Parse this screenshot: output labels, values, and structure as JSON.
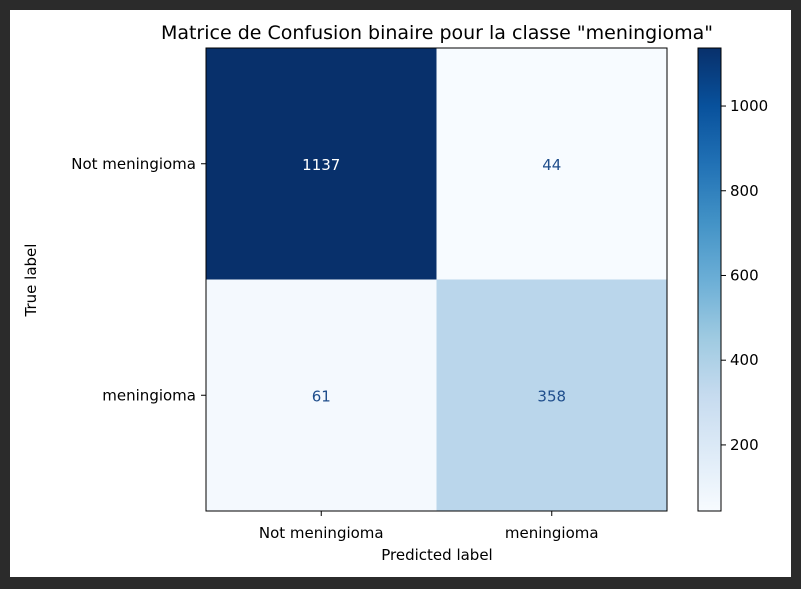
{
  "chart_data": {
    "type": "heatmap",
    "title": "Matrice de Confusion binaire pour la classe \"meningioma\"",
    "xlabel": "Predicted label",
    "ylabel": "True label",
    "x_categories": [
      "Not meningioma",
      "meningioma"
    ],
    "y_categories": [
      "Not meningioma",
      "meningioma"
    ],
    "values": [
      [
        1137,
        44
      ],
      [
        61,
        358
      ]
    ],
    "colormap": "Blues",
    "vmin": 44,
    "vmax": 1137,
    "colorbar": {
      "ticks": [
        200,
        400,
        600,
        800,
        1000
      ],
      "tick_labels": [
        "200",
        "400",
        "600",
        "800",
        "1000"
      ]
    },
    "colors": {
      "cell_text_dark_bg": "#ffffff",
      "cell_text_light_bg": "#1f4e8c",
      "frame_bg": "#2b2b2b"
    }
  }
}
